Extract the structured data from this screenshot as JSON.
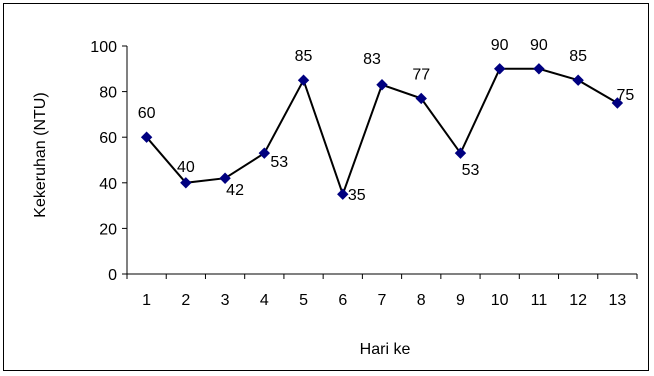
{
  "chart_data": {
    "type": "line",
    "title": "",
    "xlabel": "Hari ke",
    "ylabel": "Kekeruhan (NTU)",
    "x": [
      "1",
      "2",
      "3",
      "4",
      "5",
      "6",
      "7",
      "8",
      "9",
      "10",
      "11",
      "12",
      "13"
    ],
    "series": [
      {
        "values": [
          60,
          40,
          42,
          53,
          85,
          35,
          83,
          77,
          53,
          90,
          90,
          85,
          75
        ]
      }
    ],
    "ylim": [
      0,
      100
    ],
    "yticks": [
      "0",
      "20",
      "40",
      "60",
      "80",
      "100"
    ],
    "grid": false,
    "legend": "none",
    "line_color": "#000000",
    "marker": "diamond",
    "marker_color": "#000080"
  }
}
